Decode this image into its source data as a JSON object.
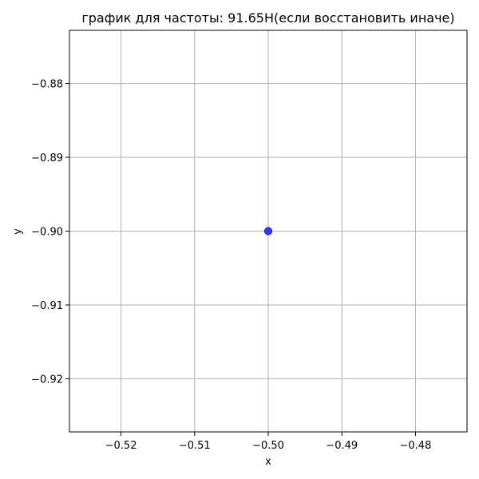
{
  "chart_data": {
    "type": "scatter",
    "title": "график для частоты: 91.65Н(если восстановить иначе)",
    "xlabel": "x",
    "ylabel": "y",
    "xlim": [
      -0.527,
      -0.473
    ],
    "ylim": [
      -0.9272,
      -0.8728
    ],
    "xticks": [
      -0.52,
      -0.51,
      -0.5,
      -0.49,
      -0.48
    ],
    "xtick_labels": [
      "−0.52",
      "−0.51",
      "−0.50",
      "−0.49",
      "−0.48"
    ],
    "yticks": [
      -0.88,
      -0.89,
      -0.9,
      -0.91,
      -0.92
    ],
    "ytick_labels": [
      "−0.88",
      "−0.89",
      "−0.90",
      "−0.91",
      "−0.92"
    ],
    "grid": true,
    "series": [
      {
        "color": "#0000ff",
        "points": [
          {
            "x": -0.5,
            "y": -0.9
          }
        ]
      }
    ],
    "colors": {
      "point": "#0000ff",
      "grid": "#b0b0b0",
      "axes": "#000000"
    }
  }
}
